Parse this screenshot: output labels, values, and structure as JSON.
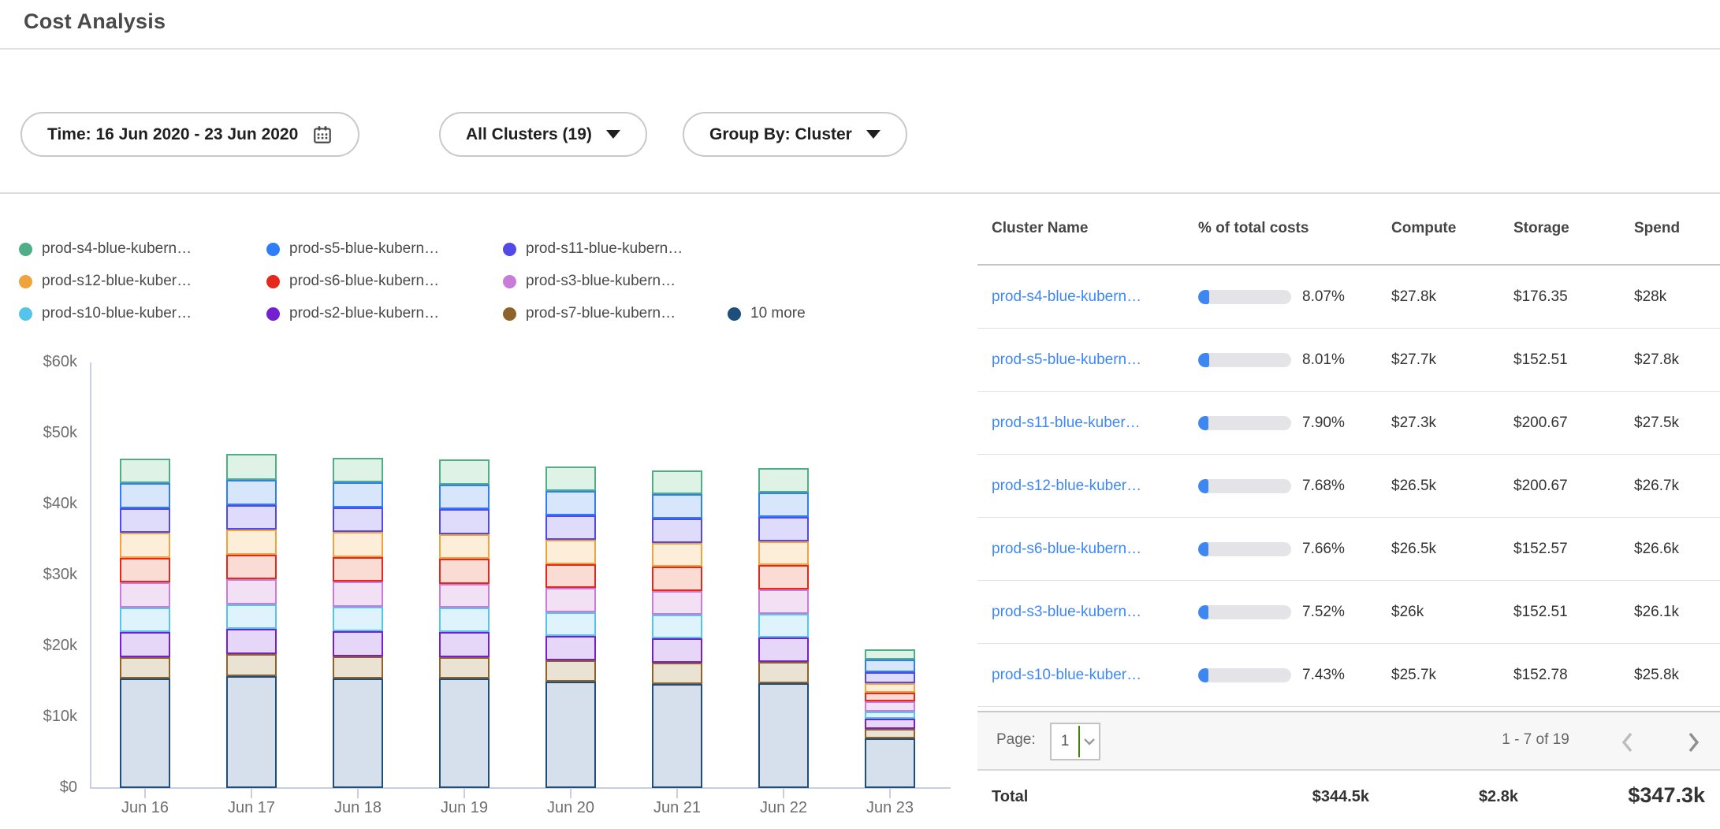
{
  "page": {
    "title": "Cost Analysis"
  },
  "filters": [
    {
      "id": "time-range",
      "label": "Time: 16 Jun 2020 - 23 Jun 2020",
      "icon": "calendar-icon"
    },
    {
      "id": "clusters",
      "label": "All Clusters (19)",
      "icon": "caret-down-icon"
    },
    {
      "id": "group-by",
      "label": "Group By: Cluster",
      "icon": "caret-down-icon"
    }
  ],
  "chart_data": {
    "type": "bar",
    "stacked": true,
    "title": "",
    "xlabel": "",
    "ylabel": "",
    "values_unit": "USD thousands",
    "ylim": [
      0,
      60000
    ],
    "grid": false,
    "legend_position": "top-left",
    "categories": [
      "Jun 16",
      "Jun 17",
      "Jun 18",
      "Jun 19",
      "Jun 20",
      "Jun 21",
      "Jun 22",
      "Jun 23"
    ],
    "y_ticks": {
      "labels": [
        "$0",
        "$10k",
        "$20k",
        "$30k",
        "$40k",
        "$50k",
        "$60k"
      ],
      "values": [
        0,
        10,
        20,
        30,
        40,
        50,
        60
      ]
    },
    "stack_order": "last series at bottom, first series on top",
    "series": [
      {
        "label": "prod-s4-blue-kubern…",
        "color": "#4fae85",
        "fill": "#def2e6",
        "values": [
          3.5,
          3.6,
          3.5,
          3.5,
          3.4,
          3.4,
          3.4,
          1.5
        ]
      },
      {
        "label": "prod-s5-blue-kubern…",
        "color": "#2e7ef8",
        "fill": "#d8e6fc",
        "values": [
          3.5,
          3.6,
          3.5,
          3.5,
          3.5,
          3.4,
          3.5,
          1.8
        ]
      },
      {
        "label": "prod-s11-blue-kubern…",
        "color": "#5348e8",
        "fill": "#dfdbfa",
        "values": [
          3.5,
          3.5,
          3.5,
          3.5,
          3.4,
          3.4,
          3.4,
          1.5
        ]
      },
      {
        "label": "prod-s12-blue-kuber…",
        "color": "#f0a23c",
        "fill": "#fdeeda",
        "values": [
          3.5,
          3.5,
          3.5,
          3.5,
          3.4,
          3.4,
          3.4,
          1.3
        ]
      },
      {
        "label": "prod-s6-blue-kubern…",
        "color": "#e5281c",
        "fill": "#fadcd5",
        "values": [
          3.5,
          3.5,
          3.5,
          3.5,
          3.4,
          3.4,
          3.4,
          1.3
        ]
      },
      {
        "label": "prod-s3-blue-kubern…",
        "color": "#c87bd8",
        "fill": "#f2e1f5",
        "values": [
          3.5,
          3.5,
          3.5,
          3.4,
          3.4,
          3.3,
          3.4,
          1.4
        ]
      },
      {
        "label": "prod-s10-blue-kuber…",
        "color": "#55c4ea",
        "fill": "#def3fb",
        "values": [
          3.5,
          3.5,
          3.5,
          3.4,
          3.4,
          3.4,
          3.4,
          1.0
        ]
      },
      {
        "label": "prod-s2-blue-kubern…",
        "color": "#7520d0",
        "fill": "#e6d7f8",
        "values": [
          3.5,
          3.5,
          3.5,
          3.5,
          3.4,
          3.4,
          3.4,
          1.5
        ]
      },
      {
        "label": "prod-s7-blue-kubern…",
        "color": "#8e6228",
        "fill": "#eae2d3",
        "values": [
          3.0,
          3.1,
          3.1,
          3.0,
          3.0,
          3.0,
          3.0,
          1.3
        ]
      },
      {
        "label": "10 more",
        "color": "#1d4e7c",
        "fill": "#d6e0ec",
        "values": [
          15.5,
          15.8,
          15.5,
          15.5,
          15.0,
          14.7,
          14.8,
          7.0
        ]
      }
    ]
  },
  "table": {
    "columns": [
      "Cluster Name",
      "% of total costs",
      "Compute",
      "Storage",
      "Spend"
    ],
    "rows": [
      {
        "name": "prod-s4-blue-kubern…",
        "pct": "8.07%",
        "pct_value": 8.07,
        "compute": "$27.8k",
        "storage": "$176.35",
        "spend": "$28k"
      },
      {
        "name": "prod-s5-blue-kubern…",
        "pct": "8.01%",
        "pct_value": 8.01,
        "compute": "$27.7k",
        "storage": "$152.51",
        "spend": "$27.8k"
      },
      {
        "name": "prod-s11-blue-kuber…",
        "pct": "7.90%",
        "pct_value": 7.9,
        "compute": "$27.3k",
        "storage": "$200.67",
        "spend": "$27.5k"
      },
      {
        "name": "prod-s12-blue-kuber…",
        "pct": "7.68%",
        "pct_value": 7.68,
        "compute": "$26.5k",
        "storage": "$200.67",
        "spend": "$26.7k"
      },
      {
        "name": "prod-s6-blue-kubern…",
        "pct": "7.66%",
        "pct_value": 7.66,
        "compute": "$26.5k",
        "storage": "$152.57",
        "spend": "$26.6k"
      },
      {
        "name": "prod-s3-blue-kubern…",
        "pct": "7.52%",
        "pct_value": 7.52,
        "compute": "$26k",
        "storage": "$152.51",
        "spend": "$26.1k"
      },
      {
        "name": "prod-s10-blue-kuber…",
        "pct": "7.43%",
        "pct_value": 7.43,
        "compute": "$25.7k",
        "storage": "$152.78",
        "spend": "$25.8k"
      }
    ],
    "pagination": {
      "page_label": "Page:",
      "page": "1",
      "range": "1 - 7 of 19"
    },
    "total": {
      "label": "Total",
      "compute": "$344.5k",
      "storage": "$2.8k",
      "spend": "$347.3k"
    }
  },
  "colors": {
    "link": "#3f87f5",
    "pct_bar_fill": "#3e86f0",
    "pct_bar_track": "#e4e4e8",
    "axis": "#c9cfe3",
    "select_accent_green": "#3c8700"
  }
}
